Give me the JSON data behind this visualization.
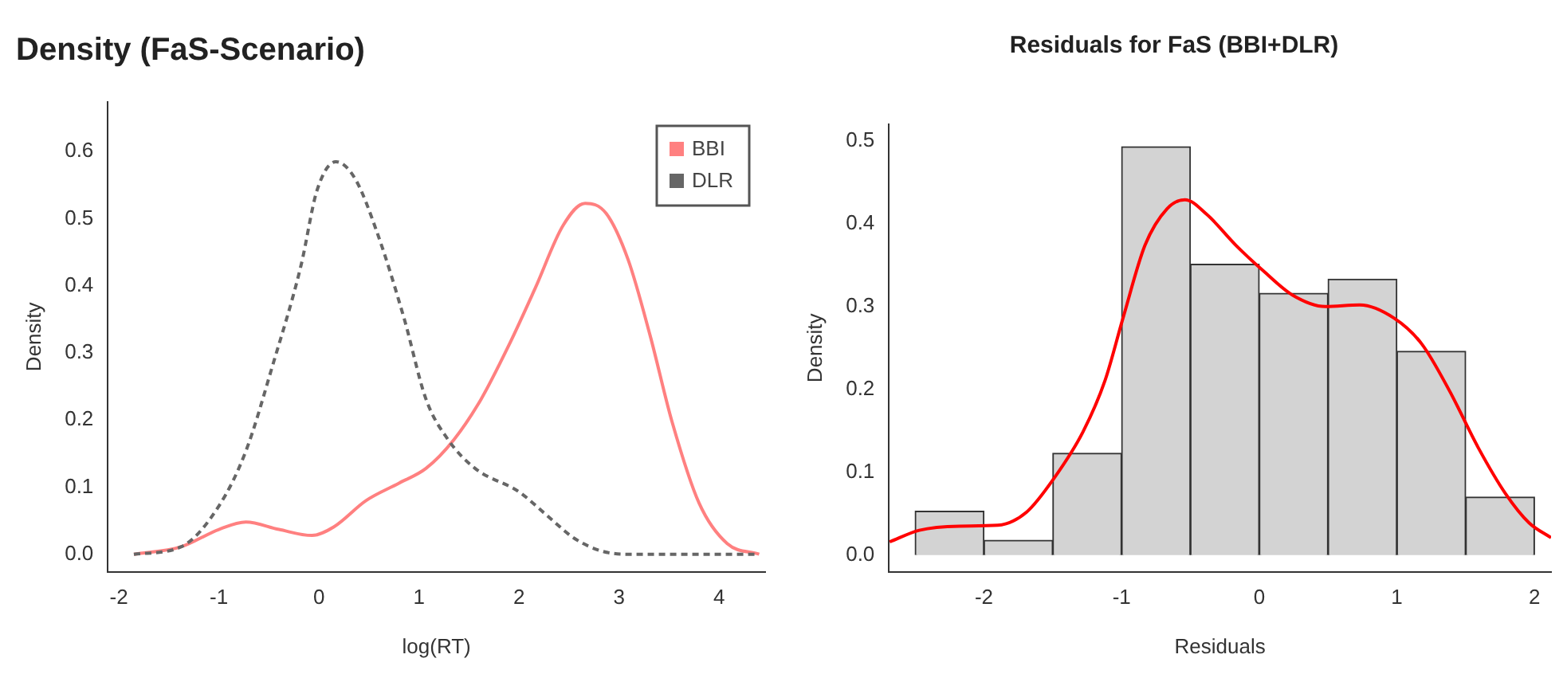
{
  "chart_data": [
    {
      "type": "line",
      "title": "Density (FaS-Scenario)",
      "xlabel": "log(RT)",
      "ylabel": "Density",
      "xlim": [
        -2.11,
        4.46
      ],
      "ylim": [
        -0.026,
        0.674
      ],
      "xticks": [
        -2,
        -1,
        0,
        1,
        2,
        3,
        4
      ],
      "yticks": [
        {
          "value": 0,
          "label": "0.0"
        },
        {
          "value": 0.1,
          "label": "0.1"
        },
        {
          "value": 0.2,
          "label": "0.2"
        },
        {
          "value": 0.3,
          "label": "0.3"
        },
        {
          "value": 0.4,
          "label": "0.4"
        },
        {
          "value": 0.5,
          "label": "0.5"
        },
        {
          "value": 0.6,
          "label": "0.6"
        }
      ],
      "grid": false,
      "legend": "top right",
      "marker": "none",
      "series": [
        {
          "name": "BBI",
          "color": "#ff8080",
          "line_style": "solid",
          "x": [
            -1.85,
            -1.38,
            -1,
            -0.73,
            -0.4,
            -0.07,
            0.15,
            0.47,
            0.8,
            1.07,
            1.35,
            1.62,
            1.89,
            2.16,
            2.44,
            2.66,
            2.87,
            3.09,
            3.31,
            3.53,
            3.8,
            4.08,
            4.4
          ],
          "values": [
            0,
            0.011,
            0.037,
            0.048,
            0.037,
            0.028,
            0.041,
            0.08,
            0.106,
            0.128,
            0.171,
            0.231,
            0.309,
            0.396,
            0.49,
            0.523,
            0.508,
            0.439,
            0.326,
            0.197,
            0.076,
            0.016,
            0
          ]
        },
        {
          "name": "DLR",
          "color": "#666666",
          "line_style": "dashed",
          "x": [
            -1.85,
            -1.38,
            -1,
            -0.73,
            -0.46,
            -0.18,
            -0.02,
            0.17,
            0.36,
            0.58,
            0.85,
            1.07,
            1.29,
            1.56,
            2,
            2.27,
            2.55,
            2.82,
            3.09,
            4.4
          ],
          "values": [
            0,
            0.011,
            0.072,
            0.154,
            0.283,
            0.43,
            0.542,
            0.585,
            0.56,
            0.48,
            0.352,
            0.231,
            0.171,
            0.128,
            0.093,
            0.059,
            0.024,
            0.005,
            0,
            0
          ]
        }
      ]
    },
    {
      "type": "histogram",
      "title": "Residuals for FaS (BBI+DLR)",
      "xlabel": "Residuals",
      "ylabel": "Density",
      "xlim": [
        -2.69,
        2.12
      ],
      "ylim": [
        -0.02,
        0.52
      ],
      "xticks": [
        -2,
        -1,
        0,
        1,
        2
      ],
      "yticks": [
        {
          "value": 0,
          "label": "0.0"
        },
        {
          "value": 0.1,
          "label": "0.1"
        },
        {
          "value": 0.2,
          "label": "0.2"
        },
        {
          "value": 0.3,
          "label": "0.3"
        },
        {
          "value": 0.4,
          "label": "0.4"
        },
        {
          "value": 0.5,
          "label": "0.5"
        }
      ],
      "grid": false,
      "legend": false,
      "bins": [
        -2.5,
        -2,
        -1.5,
        -1,
        -0.5,
        0,
        0.5,
        1,
        1.5,
        2
      ],
      "values": [
        0.053,
        0.018,
        0.123,
        0.493,
        0.351,
        0.316,
        0.333,
        0.246,
        0.07
      ],
      "color": "#d3d3d3",
      "series": [
        {
          "type": "line",
          "color": "#ff0000",
          "x": [
            -2.685,
            -2.47,
            -2.18,
            -1.9,
            -1.69,
            -1.49,
            -1.28,
            -1.12,
            -0.99,
            -0.83,
            -0.67,
            -0.54,
            -0.38,
            -0.17,
            0.03,
            0.24,
            0.48,
            0.73,
            0.98,
            1.18,
            1.38,
            1.59,
            1.79,
            1.96,
            2.12
          ],
          "values": [
            0.016,
            0.03,
            0.035,
            0.036,
            0.052,
            0.093,
            0.149,
            0.211,
            0.286,
            0.374,
            0.418,
            0.429,
            0.411,
            0.374,
            0.343,
            0.314,
            0.3,
            0.302,
            0.286,
            0.255,
            0.199,
            0.13,
            0.074,
            0.039,
            0.021
          ]
        }
      ]
    }
  ]
}
